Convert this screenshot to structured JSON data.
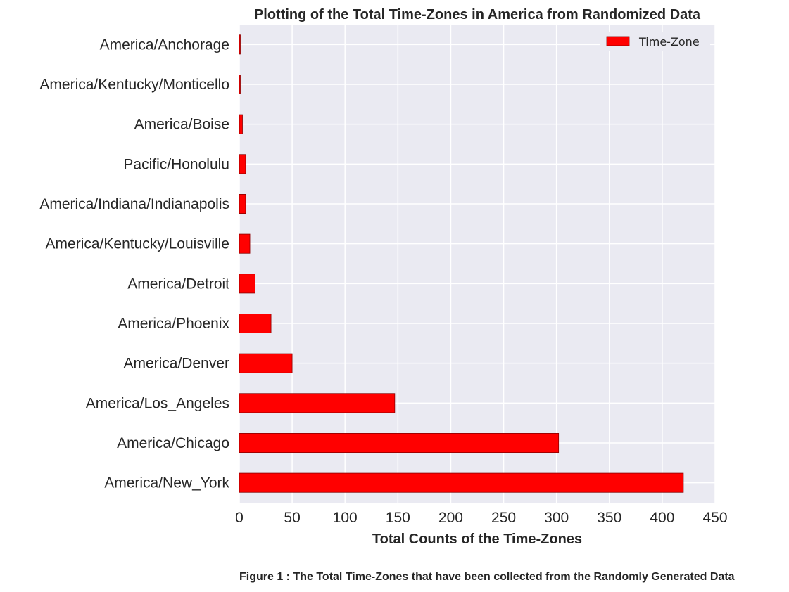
{
  "chart_data": {
    "type": "bar",
    "orientation": "horizontal",
    "title": "Plotting of the Total Time-Zones in America from Randomized Data",
    "xlabel": "Total Counts of the Time-Zones",
    "ylabel": "",
    "categories": [
      "America/New_York",
      "America/Chicago",
      "America/Los_Angeles",
      "America/Denver",
      "America/Phoenix",
      "America/Detroit",
      "America/Kentucky/Louisville",
      "America/Indiana/Indianapolis",
      "Pacific/Honolulu",
      "America/Boise",
      "America/Kentucky/Monticello",
      "America/Anchorage"
    ],
    "series": [
      {
        "name": "Time-Zone",
        "color": "#ff0000",
        "values": [
          420,
          302,
          147,
          50,
          30,
          15,
          10,
          6,
          6,
          3,
          1,
          1
        ]
      }
    ],
    "xlim": [
      0,
      450
    ],
    "xticks": [
      0,
      50,
      100,
      150,
      200,
      250,
      300,
      350,
      400,
      450
    ],
    "grid": true,
    "legend_position": "top-right",
    "background_color": "#eaeaf2",
    "grid_color": "#ffffff",
    "bar_edge_color": "#8b0000"
  },
  "caption": "Figure 1 : The Total Time-Zones that have been collected from the Randomly Generated Data"
}
